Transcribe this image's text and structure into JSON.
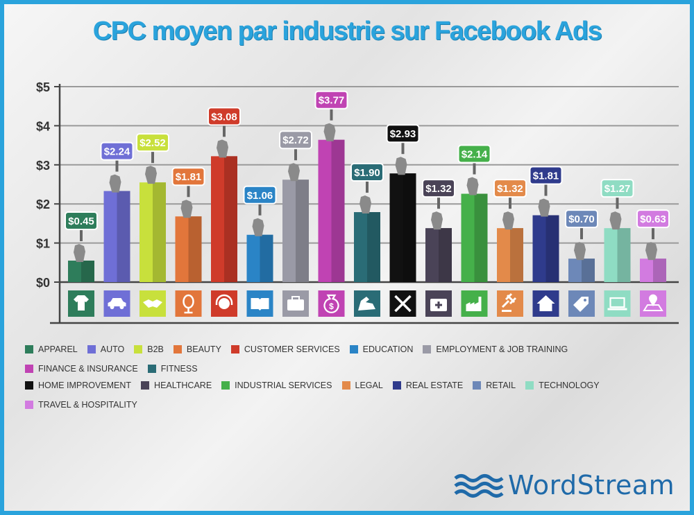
{
  "chart_data": {
    "type": "bar",
    "title": "CPC moyen par industrie sur Facebook Ads",
    "xlabel": "",
    "ylabel": "",
    "ylim": [
      0,
      5
    ],
    "yticks": [
      "$0",
      "$1",
      "$2",
      "$3",
      "$4",
      "$5"
    ],
    "categories": [
      "APPAREL",
      "AUTO",
      "B2B",
      "BEAUTY",
      "CUSTOMER SERVICES",
      "EDUCATION",
      "EMPLOYMENT & JOB TRAINING",
      "FINANCE & INSURANCE",
      "FITNESS",
      "HOME IMPROVEMENT",
      "HEALTHCARE",
      "INDUSTRIAL SERVICES",
      "LEGAL",
      "REAL ESTATE",
      "RETAIL",
      "TECHNOLOGY",
      "TRAVEL & HOSPITALITY"
    ],
    "values": [
      0.45,
      2.24,
      2.52,
      1.81,
      3.08,
      1.06,
      2.72,
      3.77,
      1.9,
      2.93,
      1.32,
      2.14,
      1.32,
      1.81,
      0.7,
      1.27,
      0.63
    ],
    "bar_heights": [
      0.55,
      2.33,
      2.55,
      1.68,
      3.22,
      1.21,
      2.62,
      3.64,
      1.79,
      2.78,
      1.38,
      2.26,
      1.38,
      1.71,
      0.6,
      1.38,
      0.6
    ],
    "labels": [
      "$0.45",
      "$2.24",
      "$2.52",
      "$1.81",
      "$3.08",
      "$1.06",
      "$2.72",
      "$3.77",
      "$1.90",
      "$2.93",
      "$1.32",
      "$2.14",
      "$1.32",
      "$1.81",
      "$0.70",
      "$1.27",
      "$0.63"
    ],
    "colors": [
      "#2e7d5b",
      "#6f6fd6",
      "#c8e03c",
      "#e2763b",
      "#cf3b2a",
      "#2a84c6",
      "#9a9aa6",
      "#c043b3",
      "#2a6c76",
      "#111111",
      "#4a4357",
      "#45b04a",
      "#e38a4a",
      "#2f3b8c",
      "#6d88b8",
      "#8fdcc3",
      "#d27be0"
    ],
    "icons": [
      "shirt-icon",
      "car-icon",
      "handshake-icon",
      "mirror-icon",
      "headset-icon",
      "book-icon",
      "briefcase-icon",
      "money-bag-icon",
      "bicep-icon",
      "tools-icon",
      "medkit-icon",
      "factory-icon",
      "gavel-icon",
      "house-icon",
      "tag-icon",
      "laptop-icon",
      "map-pin-icon"
    ],
    "legend_rows": [
      [
        0,
        1,
        2,
        3,
        4,
        5,
        6,
        7,
        8
      ],
      [
        9,
        10,
        11,
        12,
        13,
        14,
        15,
        16
      ]
    ]
  },
  "brand": {
    "name": "WordStream",
    "color": "#1f6aa9"
  }
}
